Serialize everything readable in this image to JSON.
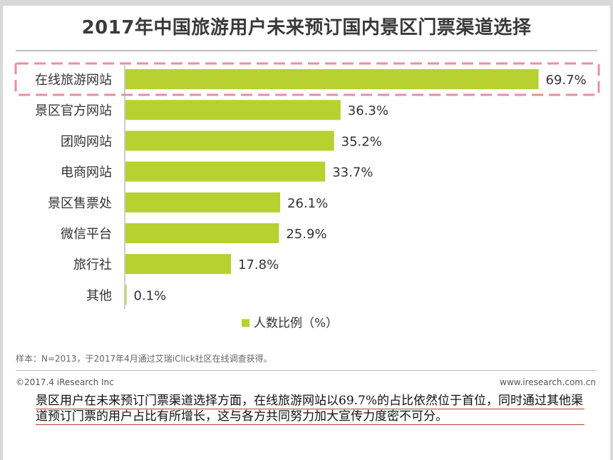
{
  "title": "2017年中国旅游用户未来预订国内景区门票渠道选择",
  "note": "样本：N=2013，于2017年4月通过艾瑞iClick社区在线调查获得。",
  "copyright": "©2017.4 iResearch Inc",
  "website": "www.iresearch.com.cn",
  "footer_text": "景区用户在未来预订门票渠道选择方面，在线旅游网站以69.7%的占比依然位于首位，同时通过其他渠道预订门票的用户占比有所增长，这与各方共同努力加大宣传力度密不可分。",
  "colors": {
    "bar": "#b6d130",
    "highlight_box": "#e8909a",
    "accent_underline": "#c0392b"
  },
  "chart_data": {
    "type": "bar",
    "orientation": "horizontal",
    "categories": [
      "在线旅游网站",
      "景区官方网站",
      "团购网站",
      "电商网站",
      "景区售票处",
      "微信平台",
      "旅行社",
      "其他"
    ],
    "values": [
      69.7,
      36.3,
      35.2,
      33.7,
      26.1,
      25.9,
      17.8,
      0.1
    ],
    "value_labels": [
      "69.7%",
      "36.3%",
      "35.2%",
      "33.7%",
      "26.1%",
      "25.9%",
      "17.8%",
      "0.1%"
    ],
    "series": [
      {
        "name": "人数比例（%）",
        "values": [
          69.7,
          36.3,
          35.2,
          33.7,
          26.1,
          25.9,
          17.8,
          0.1
        ]
      }
    ],
    "legend_label": "人数比例（%）",
    "legend_position": "bottom-center",
    "highlighted_category": "在线旅游网站",
    "xlim": [
      0,
      70
    ],
    "grid": false
  }
}
